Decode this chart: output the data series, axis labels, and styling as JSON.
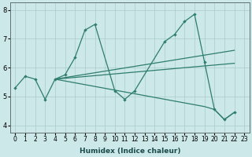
{
  "xlabel": "Humidex (Indice chaleur)",
  "background_color": "#cce8e8",
  "grid_color": "#aacccc",
  "line_color": "#2e7d6e",
  "xlim": [
    -0.5,
    23.5
  ],
  "ylim": [
    3.75,
    8.25
  ],
  "yticks": [
    4,
    5,
    6,
    7,
    8
  ],
  "xticks": [
    0,
    1,
    2,
    3,
    4,
    5,
    6,
    7,
    8,
    9,
    10,
    11,
    12,
    13,
    14,
    15,
    16,
    17,
    18,
    19,
    20,
    21,
    22,
    23
  ],
  "line1_x": [
    0,
    1,
    2,
    3,
    4,
    5,
    6,
    7,
    8,
    10,
    11,
    12,
    15,
    16,
    17,
    18,
    19,
    20,
    21,
    22
  ],
  "line1_y": [
    5.3,
    5.7,
    5.6,
    4.9,
    5.6,
    5.75,
    6.35,
    7.3,
    7.5,
    5.2,
    4.9,
    5.2,
    6.9,
    7.15,
    7.6,
    7.85,
    6.2,
    4.55,
    4.2,
    4.45
  ],
  "fan_origin_x": 4,
  "fan_origin_y": 5.6,
  "fan_line1_x": [
    4,
    22
  ],
  "fan_line1_y": [
    5.6,
    6.6
  ],
  "fan_line2_x": [
    4,
    22
  ],
  "fan_line2_y": [
    5.6,
    6.15
  ],
  "fan_line3_x": [
    4,
    19,
    20,
    21,
    22
  ],
  "fan_line3_y": [
    5.6,
    4.65,
    4.55,
    4.2,
    4.45
  ],
  "xlabel_fontsize": 6.5,
  "tick_fontsize_x": 5.5,
  "tick_fontsize_y": 6.0
}
